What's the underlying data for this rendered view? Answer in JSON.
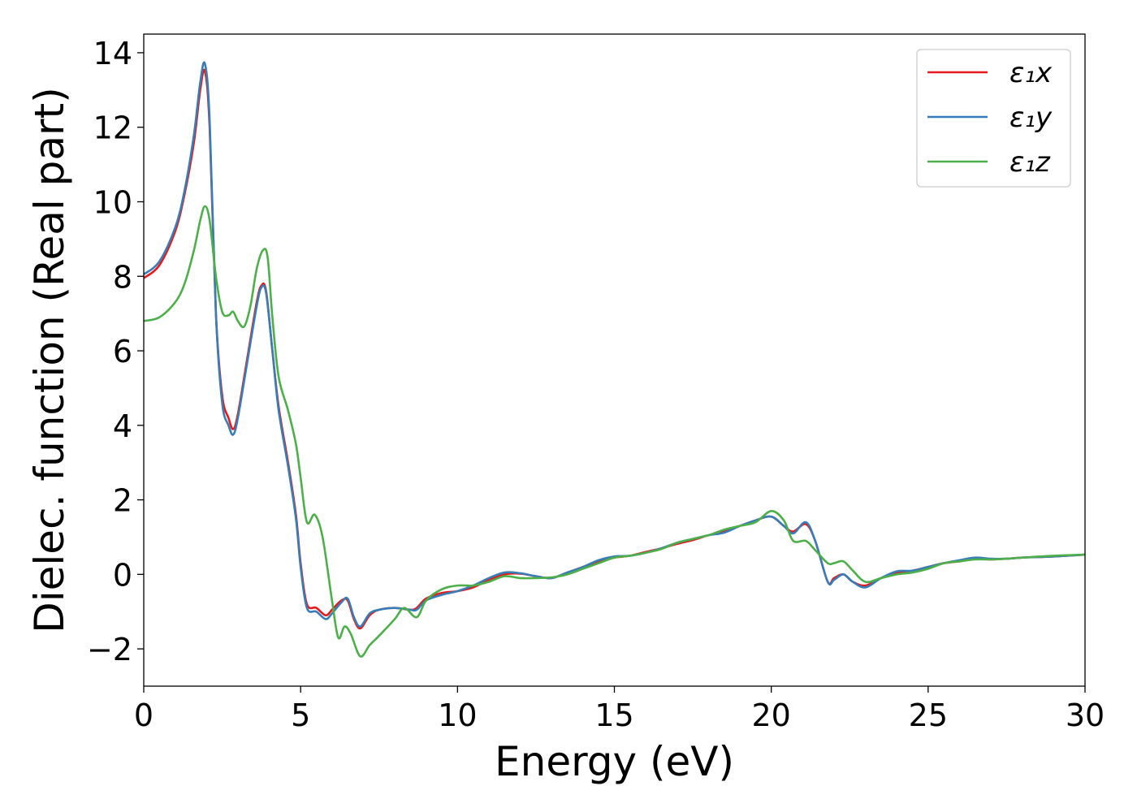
{
  "chart_data": {
    "type": "line",
    "title": "",
    "xlabel": "Energy (eV)",
    "ylabel": "Dielec. function (Real part)",
    "xlim": [
      0,
      30
    ],
    "ylim": [
      -3,
      14.5
    ],
    "xticks": [
      0,
      5,
      10,
      15,
      20,
      25,
      30
    ],
    "xtick_labels": [
      "0",
      "5",
      "10",
      "15",
      "20",
      "25",
      "30"
    ],
    "yticks": [
      -2,
      0,
      2,
      4,
      6,
      8,
      10,
      12,
      14
    ],
    "ytick_labels": [
      "−2",
      "0",
      "2",
      "4",
      "6",
      "8",
      "10",
      "12",
      "14"
    ],
    "grid": false,
    "legend_position": "top-right",
    "series": [
      {
        "name": "ε₁x",
        "color": "#e41a1c",
        "x": [
          0,
          0.5,
          1.0,
          1.3,
          1.6,
          1.8,
          1.95,
          2.1,
          2.3,
          2.5,
          2.7,
          2.85,
          3.0,
          3.3,
          3.6,
          3.75,
          3.9,
          4.1,
          4.3,
          4.6,
          4.85,
          5.0,
          5.2,
          5.5,
          5.8,
          6.0,
          6.3,
          6.5,
          6.7,
          6.9,
          7.2,
          7.5,
          8.0,
          8.5,
          8.7,
          9.0,
          9.5,
          10.0,
          10.5,
          11.0,
          11.5,
          12.0,
          12.5,
          13.0,
          13.5,
          14.0,
          14.5,
          15.0,
          15.5,
          16.0,
          16.5,
          17.0,
          17.5,
          18.0,
          18.5,
          19.0,
          19.5,
          20.0,
          20.4,
          20.7,
          21.1,
          21.4,
          21.8,
          22.0,
          22.3,
          22.6,
          23.0,
          23.5,
          24.0,
          24.5,
          25.0,
          25.5,
          26.0,
          26.5,
          27.0,
          27.5,
          28.0,
          29.0,
          30.0
        ],
        "y": [
          7.95,
          8.3,
          9.2,
          10.2,
          11.6,
          13.0,
          13.5,
          12.0,
          7.0,
          4.8,
          4.2,
          3.9,
          4.3,
          5.8,
          7.3,
          7.75,
          7.6,
          6.0,
          4.5,
          3.0,
          1.6,
          0.3,
          -0.8,
          -0.9,
          -1.1,
          -0.95,
          -0.7,
          -0.7,
          -1.2,
          -1.45,
          -1.1,
          -0.95,
          -0.9,
          -0.95,
          -0.9,
          -0.65,
          -0.5,
          -0.45,
          -0.35,
          -0.15,
          0.0,
          0.02,
          -0.05,
          -0.1,
          0.05,
          0.2,
          0.35,
          0.45,
          0.5,
          0.6,
          0.7,
          0.82,
          0.92,
          1.05,
          1.15,
          1.3,
          1.45,
          1.55,
          1.3,
          1.15,
          1.35,
          0.9,
          -0.2,
          -0.1,
          0.0,
          -0.2,
          -0.3,
          -0.1,
          0.05,
          0.1,
          0.2,
          0.3,
          0.35,
          0.42,
          0.4,
          0.42,
          0.45,
          0.48,
          0.53
        ]
      },
      {
        "name": "ε₁y",
        "color": "#377eb8",
        "x": [
          0,
          0.5,
          1.0,
          1.3,
          1.6,
          1.8,
          1.95,
          2.1,
          2.3,
          2.5,
          2.7,
          2.85,
          3.0,
          3.3,
          3.6,
          3.75,
          3.9,
          4.1,
          4.3,
          4.6,
          4.85,
          5.0,
          5.2,
          5.5,
          5.8,
          6.0,
          6.3,
          6.5,
          6.7,
          6.9,
          7.2,
          7.5,
          8.0,
          8.5,
          8.7,
          9.0,
          9.5,
          10.0,
          10.5,
          11.0,
          11.5,
          12.0,
          12.5,
          13.0,
          13.5,
          14.0,
          14.5,
          15.0,
          15.5,
          16.0,
          16.5,
          17.0,
          17.5,
          18.0,
          18.5,
          19.0,
          19.5,
          20.0,
          20.4,
          20.7,
          21.1,
          21.4,
          21.8,
          22.0,
          22.3,
          22.6,
          23.0,
          23.5,
          24.0,
          24.5,
          25.0,
          25.5,
          26.0,
          26.5,
          27.0,
          27.5,
          28.0,
          29.0,
          30.0
        ],
        "y": [
          8.05,
          8.4,
          9.3,
          10.3,
          11.8,
          13.2,
          13.7,
          12.2,
          7.0,
          4.6,
          4.0,
          3.75,
          4.2,
          5.7,
          7.2,
          7.7,
          7.55,
          6.0,
          4.4,
          2.9,
          1.5,
          0.2,
          -0.9,
          -1.0,
          -1.2,
          -1.05,
          -0.75,
          -0.65,
          -1.15,
          -1.4,
          -1.05,
          -0.95,
          -0.9,
          -0.95,
          -0.95,
          -0.7,
          -0.55,
          -0.45,
          -0.3,
          -0.1,
          0.05,
          0.03,
          -0.05,
          -0.1,
          0.05,
          0.2,
          0.38,
          0.48,
          0.5,
          0.58,
          0.7,
          0.85,
          0.95,
          1.05,
          1.12,
          1.3,
          1.45,
          1.55,
          1.3,
          1.1,
          1.4,
          0.9,
          -0.2,
          -0.15,
          0.0,
          -0.2,
          -0.35,
          -0.1,
          0.08,
          0.1,
          0.2,
          0.3,
          0.38,
          0.45,
          0.42,
          0.42,
          0.45,
          0.48,
          0.53
        ]
      },
      {
        "name": "ε₁z",
        "color": "#4daf4a",
        "x": [
          0,
          0.5,
          1.0,
          1.3,
          1.6,
          1.8,
          1.95,
          2.1,
          2.3,
          2.5,
          2.7,
          2.85,
          3.0,
          3.2,
          3.4,
          3.6,
          3.8,
          3.95,
          4.1,
          4.3,
          4.6,
          4.85,
          5.0,
          5.2,
          5.45,
          5.7,
          6.0,
          6.2,
          6.4,
          6.6,
          6.9,
          7.2,
          7.5,
          8.0,
          8.3,
          8.7,
          9.0,
          9.5,
          10.0,
          10.5,
          11.0,
          11.5,
          12.0,
          12.5,
          13.0,
          13.5,
          14.0,
          14.5,
          15.0,
          15.5,
          16.0,
          16.5,
          17.0,
          17.5,
          18.0,
          18.5,
          19.0,
          19.5,
          20.0,
          20.4,
          20.7,
          21.1,
          21.4,
          21.8,
          22.0,
          22.3,
          22.6,
          23.0,
          23.5,
          24.0,
          24.5,
          25.0,
          25.5,
          26.0,
          26.5,
          27.0,
          27.5,
          28.0,
          29.0,
          30.0
        ],
        "y": [
          6.8,
          6.9,
          7.3,
          7.8,
          8.7,
          9.5,
          9.88,
          9.5,
          8.0,
          7.05,
          6.95,
          7.05,
          6.8,
          6.65,
          7.2,
          8.2,
          8.7,
          8.5,
          6.9,
          5.3,
          4.4,
          3.5,
          2.6,
          1.4,
          1.6,
          1.0,
          -0.7,
          -1.7,
          -1.4,
          -1.6,
          -2.2,
          -1.9,
          -1.65,
          -1.2,
          -0.9,
          -1.15,
          -0.7,
          -0.4,
          -0.3,
          -0.3,
          -0.2,
          -0.05,
          -0.1,
          -0.1,
          -0.08,
          0.0,
          0.15,
          0.3,
          0.45,
          0.5,
          0.58,
          0.68,
          0.85,
          0.95,
          1.05,
          1.2,
          1.3,
          1.4,
          1.7,
          1.45,
          0.9,
          0.9,
          0.65,
          0.3,
          0.3,
          0.35,
          0.1,
          -0.2,
          -0.1,
          0.0,
          0.05,
          0.15,
          0.3,
          0.35,
          0.4,
          0.4,
          0.42,
          0.45,
          0.5,
          0.53
        ]
      }
    ]
  }
}
